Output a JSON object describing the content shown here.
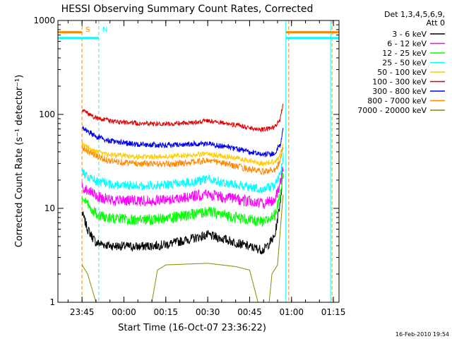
{
  "chart_data": {
    "type": "line",
    "title": "HESSI Observing Summary Count Rates, Corrected",
    "xlabel": "Start Time (16-Oct-07 23:36:22)",
    "ylabel": "Corrected Count Rate (s⁻¹ detector⁻¹)",
    "y_scale": "log",
    "ylim": [
      1,
      1000
    ],
    "xlim": [
      "23:36:22",
      "01:17:00"
    ],
    "y_ticks": [
      {
        "value": 1,
        "label": "1"
      },
      {
        "value": 10,
        "label": "10"
      },
      {
        "value": 100,
        "label": "100"
      },
      {
        "value": 1000,
        "label": "1000"
      }
    ],
    "x_ticks": [
      {
        "time": "23:45",
        "label": "23:45"
      },
      {
        "time": "00:00",
        "label": "00:00"
      },
      {
        "time": "00:15",
        "label": "00:15"
      },
      {
        "time": "00:30",
        "label": "00:30"
      },
      {
        "time": "00:45",
        "label": "00:45"
      },
      {
        "time": "01:00",
        "label": "01:00"
      },
      {
        "time": "01:15",
        "label": "01:15"
      }
    ],
    "legend": {
      "placement": "right",
      "header": [
        "Det 1,3,4,5,6,9,",
        "Att 0"
      ],
      "entries": [
        {
          "label": "3 - 6 keV",
          "color": "#000000"
        },
        {
          "label": "6 - 12 keV",
          "color": "#ff00ff"
        },
        {
          "label": "12 - 25 keV",
          "color": "#00ff00"
        },
        {
          "label": "25 - 50 keV",
          "color": "#00ffff"
        },
        {
          "label": "50 - 100 keV",
          "color": "#ffcc00"
        },
        {
          "label": "100 - 300 keV",
          "color": "#e00000"
        },
        {
          "label": "300 - 800 keV",
          "color": "#0000ee"
        },
        {
          "label": "800 - 7000 keV",
          "color": "#ff8800"
        },
        {
          "label": "7000 - 20000 keV",
          "color": "#888800"
        }
      ]
    },
    "series": [
      {
        "name": "3 - 6 keV",
        "color": "#000000",
        "noise": 0.05,
        "points": [
          [
            "23:45:00",
            9.0
          ],
          [
            "23:47:00",
            6.0
          ],
          [
            "23:50:00",
            4.3
          ],
          [
            "23:55:00",
            4.0
          ],
          [
            "00:05:00",
            3.9
          ],
          [
            "00:15:00",
            4.1
          ],
          [
            "00:25:00",
            4.8
          ],
          [
            "00:30:00",
            5.2
          ],
          [
            "00:37:00",
            4.6
          ],
          [
            "00:45:00",
            3.9
          ],
          [
            "00:50:00",
            3.6
          ],
          [
            "00:54:00",
            5.0
          ],
          [
            "00:56:00",
            12.0
          ],
          [
            "00:57:00",
            24.0
          ]
        ]
      },
      {
        "name": "6 - 12 keV",
        "color": "#ff00ff",
        "noise": 0.06,
        "points": [
          [
            "23:45:00",
            17.0
          ],
          [
            "23:50:00",
            13.5
          ],
          [
            "23:55:00",
            12.3
          ],
          [
            "00:05:00",
            12.0
          ],
          [
            "00:15:00",
            12.4
          ],
          [
            "00:25:00",
            13.5
          ],
          [
            "00:30:00",
            14.2
          ],
          [
            "00:37:00",
            13.0
          ],
          [
            "00:45:00",
            11.8
          ],
          [
            "00:50:00",
            11.2
          ],
          [
            "00:54:00",
            12.5
          ],
          [
            "00:56:00",
            18.0
          ],
          [
            "00:57:00",
            28.0
          ]
        ]
      },
      {
        "name": "12 - 25 keV",
        "color": "#00ff00",
        "noise": 0.06,
        "points": [
          [
            "23:45:00",
            12.5
          ],
          [
            "23:50:00",
            8.8
          ],
          [
            "23:55:00",
            7.8
          ],
          [
            "00:05:00",
            7.5
          ],
          [
            "00:15:00",
            7.8
          ],
          [
            "00:25:00",
            8.6
          ],
          [
            "00:30:00",
            9.2
          ],
          [
            "00:37:00",
            8.4
          ],
          [
            "00:45:00",
            7.5
          ],
          [
            "00:50:00",
            7.0
          ],
          [
            "00:54:00",
            8.5
          ],
          [
            "00:56:00",
            14.0
          ],
          [
            "00:57:00",
            26.0
          ]
        ]
      },
      {
        "name": "25 - 50 keV",
        "color": "#00ffff",
        "noise": 0.05,
        "points": [
          [
            "23:45:00",
            24.0
          ],
          [
            "23:50:00",
            19.5
          ],
          [
            "23:55:00",
            18.0
          ],
          [
            "00:05:00",
            17.5
          ],
          [
            "00:15:00",
            17.9
          ],
          [
            "00:25:00",
            19.0
          ],
          [
            "00:30:00",
            20.5
          ],
          [
            "00:37:00",
            18.7
          ],
          [
            "00:45:00",
            16.8
          ],
          [
            "00:50:00",
            16.0
          ],
          [
            "00:54:00",
            17.5
          ],
          [
            "00:56:00",
            23.0
          ],
          [
            "00:57:00",
            35.0
          ]
        ]
      },
      {
        "name": "50 - 100 keV",
        "color": "#ffcc00",
        "noise": 0.03,
        "points": [
          [
            "23:45:00",
            48.0
          ],
          [
            "23:50:00",
            40.0
          ],
          [
            "23:55:00",
            37.0
          ],
          [
            "00:05:00",
            35.5
          ],
          [
            "00:15:00",
            35.5
          ],
          [
            "00:25:00",
            37.0
          ],
          [
            "00:30:00",
            38.0
          ],
          [
            "00:37:00",
            35.5
          ],
          [
            "00:45:00",
            32.0
          ],
          [
            "00:50:00",
            30.0
          ],
          [
            "00:54:00",
            31.5
          ],
          [
            "00:56:00",
            37.0
          ],
          [
            "00:57:00",
            48.0
          ]
        ]
      },
      {
        "name": "100 - 300 keV",
        "color": "#e00000",
        "noise": 0.025,
        "points": [
          [
            "23:45:00",
            110.0
          ],
          [
            "23:50:00",
            92.0
          ],
          [
            "23:55:00",
            85.0
          ],
          [
            "00:05:00",
            80.0
          ],
          [
            "00:15:00",
            79.0
          ],
          [
            "00:25:00",
            82.0
          ],
          [
            "00:30:00",
            86.0
          ],
          [
            "00:37:00",
            80.0
          ],
          [
            "00:45:00",
            72.0
          ],
          [
            "00:50:00",
            69.0
          ],
          [
            "00:54:00",
            73.0
          ],
          [
            "00:56:00",
            90.0
          ],
          [
            "00:57:00",
            130.0
          ]
        ]
      },
      {
        "name": "300 - 800 keV",
        "color": "#0000ee",
        "noise": 0.03,
        "points": [
          [
            "23:45:00",
            72.0
          ],
          [
            "23:50:00",
            58.0
          ],
          [
            "23:55:00",
            52.0
          ],
          [
            "00:05:00",
            48.0
          ],
          [
            "00:15:00",
            47.0
          ],
          [
            "00:25:00",
            48.5
          ],
          [
            "00:30:00",
            49.0
          ],
          [
            "00:37:00",
            45.0
          ],
          [
            "00:45:00",
            40.0
          ],
          [
            "00:50:00",
            37.0
          ],
          [
            "00:54:00",
            39.0
          ],
          [
            "00:56:00",
            48.0
          ],
          [
            "00:57:00",
            70.0
          ]
        ]
      },
      {
        "name": "800 - 7000 keV",
        "color": "#ff8800",
        "noise": 0.035,
        "points": [
          [
            "23:45:00",
            45.0
          ],
          [
            "23:50:00",
            36.0
          ],
          [
            "23:55:00",
            32.0
          ],
          [
            "00:05:00",
            30.0
          ],
          [
            "00:15:00",
            29.5
          ],
          [
            "00:25:00",
            31.0
          ],
          [
            "00:30:00",
            32.5
          ],
          [
            "00:37:00",
            29.5
          ],
          [
            "00:45:00",
            26.0
          ],
          [
            "00:50:00",
            24.5
          ],
          [
            "00:54:00",
            26.0
          ],
          [
            "00:56:00",
            32.0
          ],
          [
            "00:57:00",
            45.0
          ]
        ]
      },
      {
        "name": "7000 - 20000 keV",
        "color": "#888800",
        "noise": 0.0,
        "points": [
          [
            "23:45:00",
            2.5
          ],
          [
            "23:47:00",
            2.0
          ],
          [
            "23:50:00",
            1.0
          ],
          [
            "00:05:00",
            1.0
          ],
          [
            "00:10:00",
            1.0
          ],
          [
            "00:12:00",
            2.2
          ],
          [
            "00:15:00",
            2.5
          ],
          [
            "00:30:00",
            2.6
          ],
          [
            "00:40:00",
            2.4
          ],
          [
            "00:45:00",
            2.2
          ],
          [
            "00:48:00",
            1.0
          ],
          [
            "00:52:00",
            1.0
          ],
          [
            "00:53:00",
            2.0
          ],
          [
            "00:55:00",
            2.5
          ],
          [
            "00:56:00",
            6.0
          ],
          [
            "00:57:00",
            14.0
          ]
        ]
      }
    ],
    "attenuator_bars": [
      {
        "color": "#ff8800",
        "y_value": 750,
        "start": "23:36:22",
        "end": "23:45:00"
      },
      {
        "color": "#00ffff",
        "y_value": 650,
        "start": "23:36:22",
        "end": "23:51:00"
      },
      {
        "color": "#ff8800",
        "y_value": 750,
        "start": "00:58:00",
        "end": "01:17:00"
      },
      {
        "color": "#00ffff",
        "y_value": 650,
        "start": "00:58:00",
        "end": "01:17:00"
      }
    ],
    "markers": [
      {
        "time": "23:45:00",
        "color": "#ff8800",
        "style": "dashed",
        "label": "S"
      },
      {
        "time": "23:51:00",
        "color": "#00ffff",
        "style": "dashed",
        "label": "N"
      },
      {
        "time": "00:58:00",
        "color": "#00ffff",
        "style": "solid",
        "label": ""
      },
      {
        "time": "00:59:00",
        "color": "#ff8800",
        "style": "dashed",
        "label": ""
      },
      {
        "time": "01:14:00",
        "color": "#00ffff",
        "style": "solid",
        "label": ""
      },
      {
        "time": "01:14:30",
        "color": "#ff8800",
        "style": "dashed",
        "label": ""
      },
      {
        "time": "23:36:22",
        "color": "#00ffff",
        "style": "solid",
        "label": ""
      }
    ],
    "grid": false
  },
  "footer": {
    "timestamp": "16-Feb-2010 19:54"
  }
}
